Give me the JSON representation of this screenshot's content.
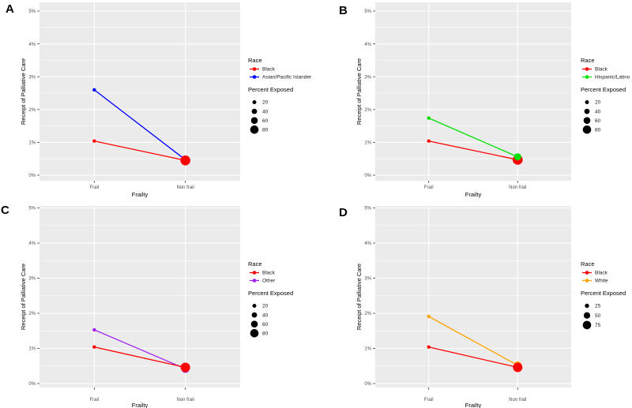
{
  "figure": {
    "panel_letters": [
      "A",
      "B",
      "C",
      "D"
    ],
    "colors": {
      "background": "#ffffff",
      "panel_bg": "#ebebeb",
      "grid": "#ffffff",
      "tick_text": "#4d4d4d",
      "title_text": "#000000",
      "tick_mark": "#333333"
    }
  },
  "shared": {
    "y_axis_title": "Receipt of Palliative Care",
    "x_axis_title": "Frailty",
    "x_categories": [
      "Frail",
      "Non frail"
    ],
    "y_tick_labels": [
      "0%",
      "1%",
      "2%",
      "3%",
      "4%",
      "5%"
    ],
    "race_legend_title": "Race",
    "size_legend_title": "Percent Exposed"
  },
  "chart_data": [
    {
      "panel": "A",
      "type": "line",
      "x_categories": [
        "Frail",
        "Non frail"
      ],
      "xlabel": "Frailty",
      "ylabel": "Receipt of Palliative Care",
      "ylim": [
        0,
        5
      ],
      "y_unit": "percent",
      "grid": true,
      "legend_position": "right",
      "series": [
        {
          "name": "Black",
          "color": "#ff0000",
          "values_pct": [
            1.04,
            0.45
          ],
          "marker_radius_px": [
            2.2,
            6.3
          ],
          "percent_exposed_est": [
            15,
            85
          ]
        },
        {
          "name": "Asian/Pacific Islander",
          "color": "#0000ff",
          "values_pct": [
            2.6,
            0.47
          ],
          "marker_radius_px": [
            2.2,
            5.2
          ],
          "percent_exposed_est": [
            18,
            80
          ]
        }
      ],
      "draw_order": [
        1,
        0
      ],
      "size_legend_values": [
        "20",
        "40",
        "60",
        "80"
      ]
    },
    {
      "panel": "B",
      "type": "line",
      "x_categories": [
        "Frail",
        "Non frail"
      ],
      "xlabel": "Frailty",
      "ylabel": "Receipt of Palliative Care",
      "ylim": [
        0,
        5
      ],
      "y_unit": "percent",
      "grid": true,
      "legend_position": "right",
      "series": [
        {
          "name": "Black",
          "color": "#ff0000",
          "values_pct": [
            1.04,
            0.47
          ],
          "marker_radius_px": [
            2.2,
            6.3
          ],
          "percent_exposed_est": [
            15,
            85
          ]
        },
        {
          "name": "Hispanic/Latino",
          "color": "#00e000",
          "values_pct": [
            1.74,
            0.56
          ],
          "marker_radius_px": [
            2.2,
            4.5
          ],
          "percent_exposed_est": [
            18,
            65
          ]
        }
      ],
      "draw_order": [
        0,
        1
      ],
      "size_legend_values": [
        "20",
        "40",
        "60",
        "80"
      ]
    },
    {
      "panel": "C",
      "type": "line",
      "x_categories": [
        "Frail",
        "Non frail"
      ],
      "xlabel": "Frailty",
      "ylabel": "Receipt of Palliative Care",
      "ylim": [
        0,
        5
      ],
      "y_unit": "percent",
      "grid": true,
      "legend_position": "right",
      "series": [
        {
          "name": "Black",
          "color": "#ff0000",
          "values_pct": [
            1.04,
            0.46
          ],
          "marker_radius_px": [
            2.2,
            6.0
          ],
          "percent_exposed_est": [
            15,
            85
          ]
        },
        {
          "name": "Other",
          "color": "#a020f0",
          "values_pct": [
            1.53,
            0.42
          ],
          "marker_radius_px": [
            2.2,
            5.2
          ],
          "percent_exposed_est": [
            18,
            78
          ]
        }
      ],
      "draw_order": [
        1,
        0
      ],
      "size_legend_values": [
        "20",
        "40",
        "60",
        "80"
      ]
    },
    {
      "panel": "D",
      "type": "line",
      "x_categories": [
        "Frail",
        "Non frail"
      ],
      "xlabel": "Frailty",
      "ylabel": "Receipt of Palliative Care",
      "ylim": [
        0,
        5
      ],
      "y_unit": "percent",
      "grid": true,
      "legend_position": "right",
      "series": [
        {
          "name": "Black",
          "color": "#ff0000",
          "values_pct": [
            1.04,
            0.46
          ],
          "marker_radius_px": [
            2.2,
            6.0
          ],
          "percent_exposed_est": [
            15,
            85
          ]
        },
        {
          "name": "White",
          "color": "#ffa500",
          "values_pct": [
            1.91,
            0.52
          ],
          "marker_radius_px": [
            2.2,
            5.0
          ],
          "percent_exposed_est": [
            20,
            75
          ]
        }
      ],
      "draw_order": [
        1,
        0
      ],
      "size_legend_values": [
        "25",
        "50",
        "75"
      ]
    }
  ]
}
